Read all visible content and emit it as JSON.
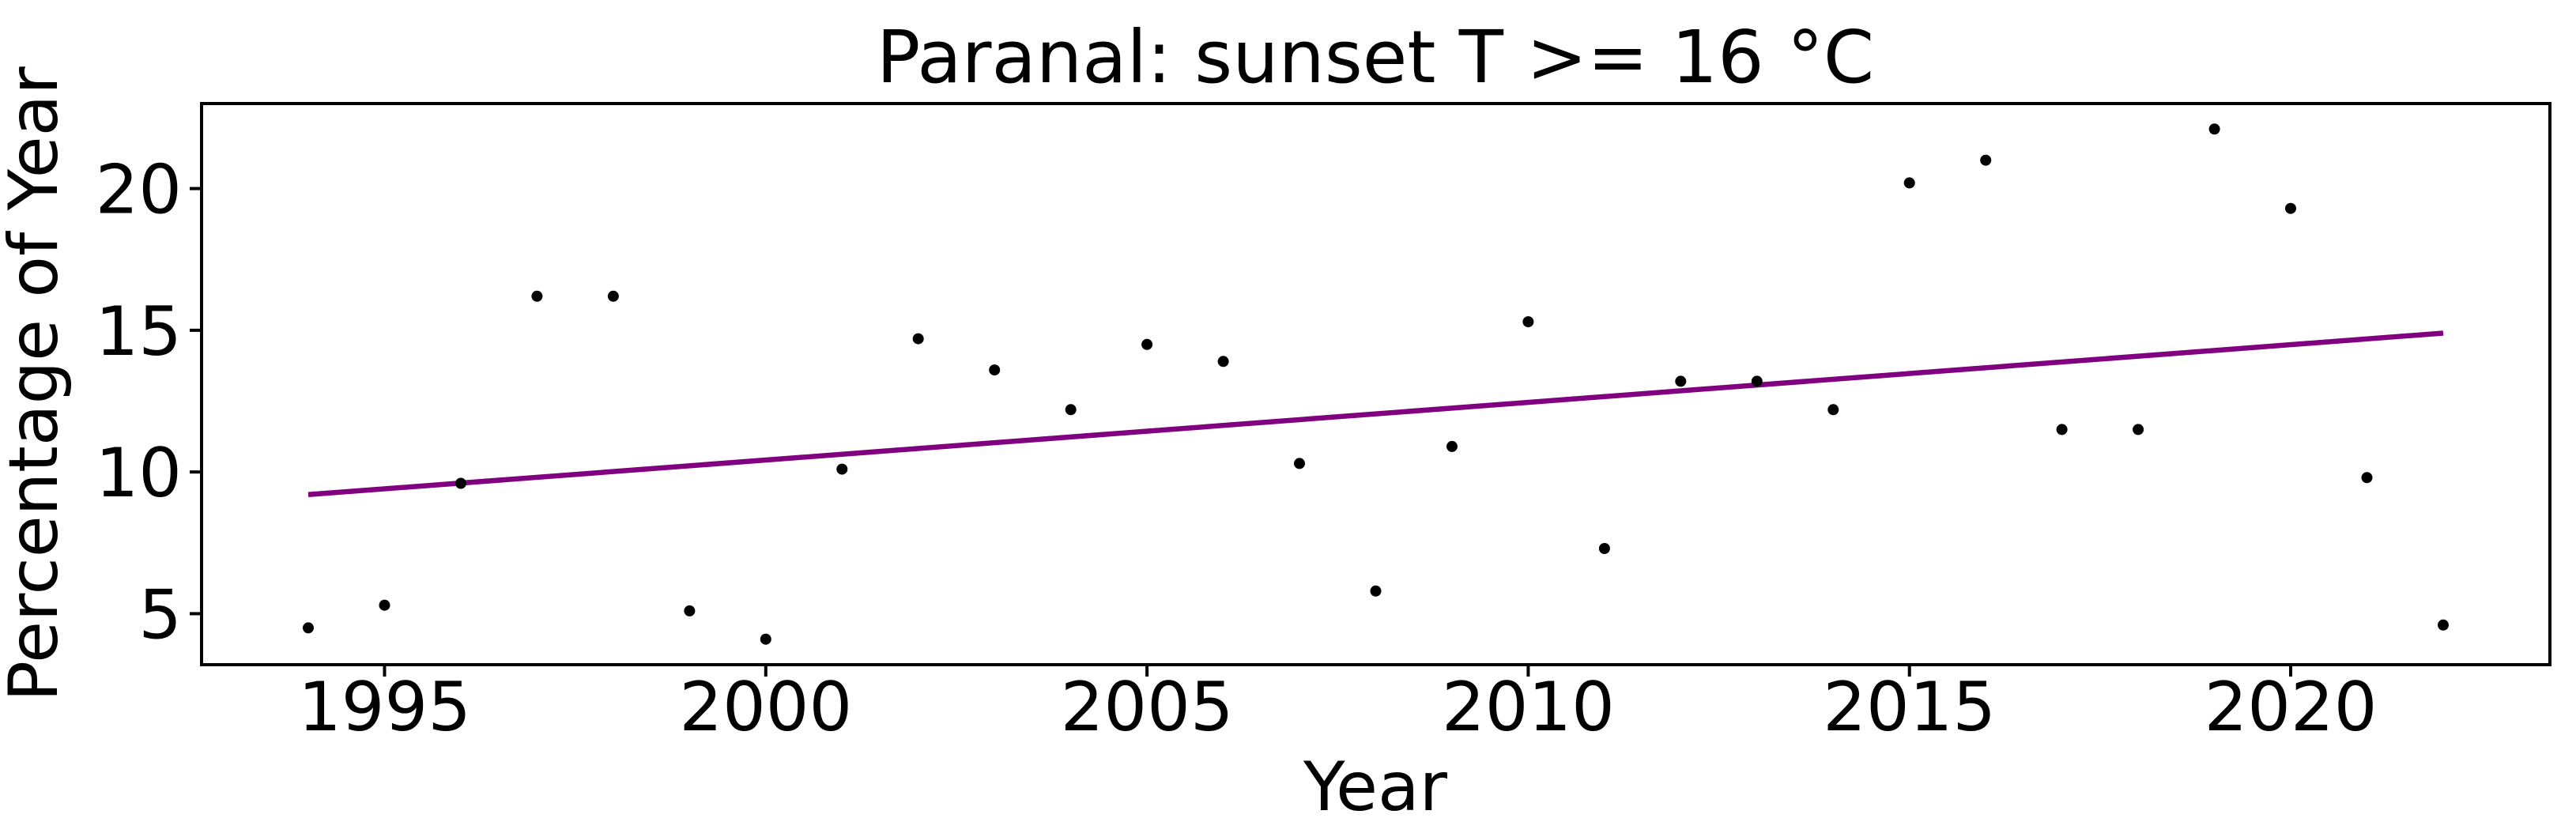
{
  "figure": {
    "title": "Paranal: sunset T >= 16 °C"
  },
  "chart_data": {
    "type": "scatter",
    "title": "Paranal: sunset T >= 16 °C",
    "xlabel": "Year",
    "ylabel": "Percentage of Year",
    "xlim": [
      1992.6,
      2023.4
    ],
    "ylim": [
      3.2,
      23.0
    ],
    "x_ticks": [
      1995,
      2000,
      2005,
      2010,
      2015,
      2020
    ],
    "y_ticks": [
      5,
      10,
      15,
      20
    ],
    "grid": false,
    "legend_position": "none",
    "marker_color": "#000000",
    "trend_color": "#800080",
    "background_color": "#ffffff",
    "series": [
      {
        "name": "annual-percentage-scatter",
        "type": "scatter",
        "x": [
          1994,
          1995,
          1996,
          1997,
          1998,
          1999,
          2000,
          2001,
          2002,
          2003,
          2004,
          2005,
          2006,
          2007,
          2008,
          2009,
          2010,
          2011,
          2012,
          2013,
          2014,
          2015,
          2016,
          2017,
          2018,
          2019,
          2020,
          2021,
          2022
        ],
        "y": [
          4.5,
          5.3,
          9.6,
          16.2,
          16.2,
          5.1,
          4.1,
          10.1,
          14.7,
          13.6,
          12.2,
          14.5,
          13.9,
          10.3,
          5.8,
          10.9,
          15.3,
          7.3,
          13.2,
          13.2,
          12.2,
          20.2,
          21.0,
          11.5,
          11.5,
          22.1,
          19.3,
          9.8,
          4.6
        ]
      },
      {
        "name": "linear-trend",
        "type": "line",
        "color": "#800080",
        "x": [
          1994,
          2022
        ],
        "y": [
          9.2,
          14.9
        ]
      }
    ]
  }
}
